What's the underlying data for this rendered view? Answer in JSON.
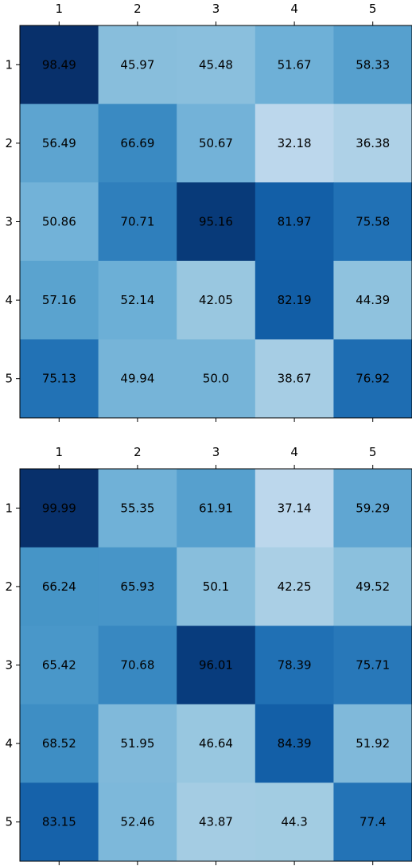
{
  "chart_data": [
    {
      "type": "heatmap",
      "colormap": "Blues",
      "x_categories": [
        "1",
        "2",
        "3",
        "4",
        "5"
      ],
      "y_categories": [
        "1",
        "2",
        "3",
        "4",
        "5"
      ],
      "x_tick_position": "top",
      "grid": false,
      "title": "",
      "xlabel": "",
      "ylabel": "",
      "values": [
        [
          98.49,
          45.97,
          45.48,
          51.67,
          58.33
        ],
        [
          56.49,
          66.69,
          50.67,
          32.18,
          36.38
        ],
        [
          50.86,
          70.71,
          95.16,
          81.97,
          75.58
        ],
        [
          57.16,
          52.14,
          42.05,
          82.19,
          44.39
        ],
        [
          75.13,
          49.94,
          50.0,
          38.67,
          76.92
        ]
      ],
      "value_labels": [
        [
          "98.49",
          "45.97",
          "45.48",
          "51.67",
          "58.33"
        ],
        [
          "56.49",
          "66.69",
          "50.67",
          "32.18",
          "36.38"
        ],
        [
          "50.86",
          "70.71",
          "95.16",
          "81.97",
          "75.58"
        ],
        [
          "57.16",
          "52.14",
          "42.05",
          "82.19",
          "44.39"
        ],
        [
          "75.13",
          "49.94",
          "50.0",
          "38.67",
          "76.92"
        ]
      ]
    },
    {
      "type": "heatmap",
      "colormap": "Blues",
      "x_categories": [
        "1",
        "2",
        "3",
        "4",
        "5"
      ],
      "y_categories": [
        "1",
        "2",
        "3",
        "4",
        "5"
      ],
      "x_tick_position": "top",
      "grid": false,
      "title": "",
      "xlabel": "",
      "ylabel": "",
      "values": [
        [
          99.99,
          55.35,
          61.91,
          37.14,
          59.29
        ],
        [
          66.24,
          65.93,
          50.1,
          42.25,
          49.52
        ],
        [
          65.42,
          70.68,
          96.01,
          78.39,
          75.71
        ],
        [
          68.52,
          51.95,
          46.64,
          84.39,
          51.92
        ],
        [
          83.15,
          52.46,
          43.87,
          44.3,
          77.4
        ]
      ],
      "value_labels": [
        [
          "99.99",
          "55.35",
          "61.91",
          "37.14",
          "59.29"
        ],
        [
          "66.24",
          "65.93",
          "50.1",
          "42.25",
          "49.52"
        ],
        [
          "65.42",
          "70.68",
          "96.01",
          "78.39",
          "75.71"
        ],
        [
          "68.52",
          "51.95",
          "46.64",
          "84.39",
          "51.92"
        ],
        [
          "83.15",
          "52.46",
          "43.87",
          "44.3",
          "77.4"
        ]
      ]
    }
  ]
}
